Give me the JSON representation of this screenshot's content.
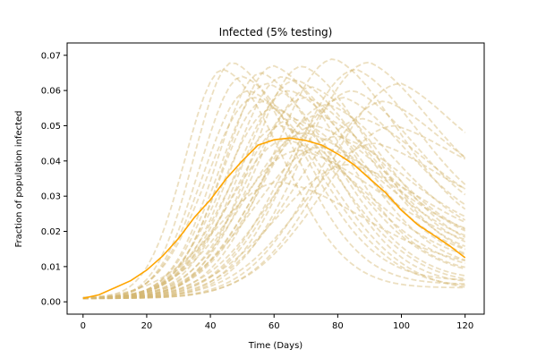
{
  "chart_data": {
    "type": "line",
    "title": "Infected (5% testing)",
    "xlabel": "Time (Days)",
    "ylabel": "Fraction of population infected",
    "xlim": [
      -5,
      126
    ],
    "ylim": [
      -0.0035,
      0.0735
    ],
    "xticks": [
      0,
      20,
      40,
      60,
      80,
      100,
      120
    ],
    "xtick_labels": [
      "0",
      "20",
      "40",
      "60",
      "80",
      "100",
      "120"
    ],
    "yticks": [
      0.0,
      0.01,
      0.02,
      0.03,
      0.04,
      0.05,
      0.06,
      0.07
    ],
    "ytick_labels": [
      "0.00",
      "0.01",
      "0.02",
      "0.03",
      "0.04",
      "0.05",
      "0.06",
      "0.07"
    ],
    "grid": false,
    "legend": "none",
    "mean_series": {
      "color": "#FFA500",
      "style": "solid",
      "x": [
        0,
        5,
        10,
        15,
        20,
        25,
        30,
        35,
        40,
        45,
        50,
        55,
        60,
        65,
        70,
        75,
        80,
        85,
        90,
        95,
        100,
        105,
        110,
        115,
        120
      ],
      "y": [
        0.001,
        0.002,
        0.004,
        0.006,
        0.009,
        0.013,
        0.018,
        0.024,
        0.029,
        0.035,
        0.04,
        0.0445,
        0.046,
        0.0465,
        0.0458,
        0.0445,
        0.042,
        0.039,
        0.035,
        0.031,
        0.026,
        0.022,
        0.019,
        0.016,
        0.0125
      ]
    },
    "simulation_runs": {
      "color": "#D4B873",
      "opacity": 0.45,
      "style": "dashed",
      "runs": [
        {
          "peak_day": 44,
          "peak_value": 0.066,
          "rise_width": 12,
          "fall_width": 20,
          "end_value": 0.004
        },
        {
          "peak_day": 47,
          "peak_value": 0.068,
          "rise_width": 12,
          "fall_width": 21,
          "end_value": 0.005
        },
        {
          "peak_day": 50,
          "peak_value": 0.064,
          "rise_width": 13,
          "fall_width": 22,
          "end_value": 0.006
        },
        {
          "peak_day": 52,
          "peak_value": 0.06,
          "rise_width": 14,
          "fall_width": 24,
          "end_value": 0.004
        },
        {
          "peak_day": 54,
          "peak_value": 0.058,
          "rise_width": 15,
          "fall_width": 25,
          "end_value": 0.003
        },
        {
          "peak_day": 56,
          "peak_value": 0.065,
          "rise_width": 14,
          "fall_width": 23,
          "end_value": 0.005
        },
        {
          "peak_day": 58,
          "peak_value": 0.062,
          "rise_width": 15,
          "fall_width": 24,
          "end_value": 0.006
        },
        {
          "peak_day": 60,
          "peak_value": 0.055,
          "rise_width": 16,
          "fall_width": 26,
          "end_value": 0.007
        },
        {
          "peak_day": 60,
          "peak_value": 0.067,
          "rise_width": 15,
          "fall_width": 24,
          "end_value": 0.008
        },
        {
          "peak_day": 62,
          "peak_value": 0.05,
          "rise_width": 17,
          "fall_width": 27,
          "end_value": 0.008
        },
        {
          "peak_day": 63,
          "peak_value": 0.064,
          "rise_width": 16,
          "fall_width": 25,
          "end_value": 0.009
        },
        {
          "peak_day": 64,
          "peak_value": 0.046,
          "rise_width": 18,
          "fall_width": 28,
          "end_value": 0.01
        },
        {
          "peak_day": 65,
          "peak_value": 0.06,
          "rise_width": 17,
          "fall_width": 26,
          "end_value": 0.01
        },
        {
          "peak_day": 66,
          "peak_value": 0.052,
          "rise_width": 18,
          "fall_width": 27,
          "end_value": 0.011
        },
        {
          "peak_day": 67,
          "peak_value": 0.063,
          "rise_width": 17,
          "fall_width": 25,
          "end_value": 0.012
        },
        {
          "peak_day": 68,
          "peak_value": 0.043,
          "rise_width": 20,
          "fall_width": 30,
          "end_value": 0.013
        },
        {
          "peak_day": 70,
          "peak_value": 0.058,
          "rise_width": 18,
          "fall_width": 26,
          "end_value": 0.012
        },
        {
          "peak_day": 70,
          "peak_value": 0.048,
          "rise_width": 19,
          "fall_width": 28,
          "end_value": 0.014
        },
        {
          "peak_day": 72,
          "peak_value": 0.061,
          "rise_width": 18,
          "fall_width": 25,
          "end_value": 0.013
        },
        {
          "peak_day": 74,
          "peak_value": 0.053,
          "rise_width": 19,
          "fall_width": 26,
          "end_value": 0.015
        },
        {
          "peak_day": 75,
          "peak_value": 0.044,
          "rise_width": 21,
          "fall_width": 27,
          "end_value": 0.016
        },
        {
          "peak_day": 77,
          "peak_value": 0.056,
          "rise_width": 20,
          "fall_width": 25,
          "end_value": 0.017
        },
        {
          "peak_day": 79,
          "peak_value": 0.069,
          "rise_width": 19,
          "fall_width": 24,
          "end_value": 0.018
        },
        {
          "peak_day": 80,
          "peak_value": 0.047,
          "rise_width": 21,
          "fall_width": 26,
          "end_value": 0.018
        },
        {
          "peak_day": 82,
          "peak_value": 0.058,
          "rise_width": 20,
          "fall_width": 24,
          "end_value": 0.02
        },
        {
          "peak_day": 84,
          "peak_value": 0.039,
          "rise_width": 23,
          "fall_width": 27,
          "end_value": 0.016
        },
        {
          "peak_day": 86,
          "peak_value": 0.066,
          "rise_width": 20,
          "fall_width": 24,
          "end_value": 0.022
        },
        {
          "peak_day": 88,
          "peak_value": 0.052,
          "rise_width": 22,
          "fall_width": 24,
          "end_value": 0.024
        },
        {
          "peak_day": 90,
          "peak_value": 0.068,
          "rise_width": 21,
          "fall_width": 24,
          "end_value": 0.028
        },
        {
          "peak_day": 92,
          "peak_value": 0.045,
          "rise_width": 23,
          "fall_width": 24,
          "end_value": 0.025
        },
        {
          "peak_day": 95,
          "peak_value": 0.057,
          "rise_width": 22,
          "fall_width": 23,
          "end_value": 0.031
        },
        {
          "peak_day": 98,
          "peak_value": 0.05,
          "rise_width": 23,
          "fall_width": 23,
          "end_value": 0.033
        },
        {
          "peak_day": 100,
          "peak_value": 0.062,
          "rise_width": 23,
          "fall_width": 22,
          "end_value": 0.036
        },
        {
          "peak_day": 57,
          "peak_value": 0.057,
          "rise_width": 14,
          "fall_width": 25,
          "end_value": 0.005
        },
        {
          "peak_day": 69,
          "peak_value": 0.067,
          "rise_width": 16,
          "fall_width": 24,
          "end_value": 0.011
        },
        {
          "peak_day": 73,
          "peak_value": 0.05,
          "rise_width": 19,
          "fall_width": 28,
          "end_value": 0.014
        },
        {
          "peak_day": 85,
          "peak_value": 0.06,
          "rise_width": 21,
          "fall_width": 24,
          "end_value": 0.021
        },
        {
          "peak_day": 62,
          "peak_value": 0.034,
          "rise_width": 20,
          "fall_width": 30,
          "end_value": 0.009
        }
      ]
    }
  }
}
